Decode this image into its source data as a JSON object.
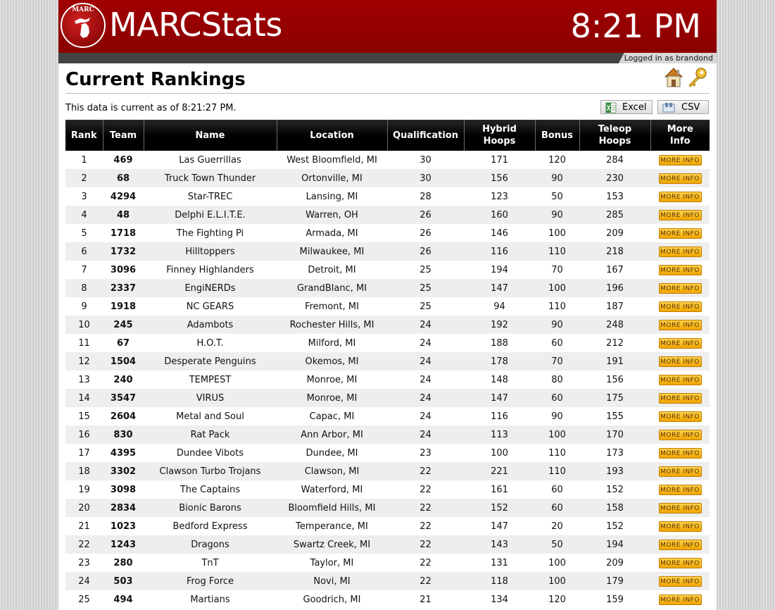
{
  "header": {
    "logo_seal_text": "MARC",
    "app_title": "MARCStats",
    "clock": "8:21 PM",
    "login_status": "Logged in as brandond",
    "brand_color": "#990000"
  },
  "page": {
    "title": "Current Rankings",
    "icons": [
      "home-icon",
      "key-icon"
    ],
    "current_text": "This data is current as of 8:21:27 PM.",
    "export_buttons": {
      "excel": "Excel",
      "csv": "CSV"
    }
  },
  "table": {
    "columns": {
      "rank": "Rank",
      "team": "Team",
      "name": "Name",
      "location": "Location",
      "qualification": "Qualification",
      "hybrid_l1": "Hybrid",
      "hybrid_l2": "Hoops",
      "bonus": "Bonus",
      "teleop_l1": "Teleop",
      "teleop_l2": "Hoops",
      "more_l1": "More",
      "more_l2": "Info"
    },
    "more_info_label": "MORE INFO",
    "rows": [
      {
        "rank": "1",
        "team": "469",
        "name": "Las Guerrillas",
        "location": "West Bloomfield, MI",
        "qualification": "30",
        "hybrid": "171",
        "bonus": "120",
        "teleop": "284"
      },
      {
        "rank": "2",
        "team": "68",
        "name": "Truck Town Thunder",
        "location": "Ortonville, MI",
        "qualification": "30",
        "hybrid": "156",
        "bonus": "90",
        "teleop": "230"
      },
      {
        "rank": "3",
        "team": "4294",
        "name": "Star-TREC",
        "location": "Lansing, MI",
        "qualification": "28",
        "hybrid": "123",
        "bonus": "50",
        "teleop": "153"
      },
      {
        "rank": "4",
        "team": "48",
        "name": "Delphi E.L.I.T.E.",
        "location": "Warren, OH",
        "qualification": "26",
        "hybrid": "160",
        "bonus": "90",
        "teleop": "285"
      },
      {
        "rank": "5",
        "team": "1718",
        "name": "The Fighting Pi",
        "location": "Armada, MI",
        "qualification": "26",
        "hybrid": "146",
        "bonus": "100",
        "teleop": "209"
      },
      {
        "rank": "6",
        "team": "1732",
        "name": "Hilltoppers",
        "location": "Milwaukee, MI",
        "qualification": "26",
        "hybrid": "116",
        "bonus": "110",
        "teleop": "218"
      },
      {
        "rank": "7",
        "team": "3096",
        "name": "Finney Highlanders",
        "location": "Detroit, MI",
        "qualification": "25",
        "hybrid": "194",
        "bonus": "70",
        "teleop": "167"
      },
      {
        "rank": "8",
        "team": "2337",
        "name": "EngiNERDs",
        "location": "GrandBlanc, MI",
        "qualification": "25",
        "hybrid": "147",
        "bonus": "100",
        "teleop": "196"
      },
      {
        "rank": "9",
        "team": "1918",
        "name": "NC GEARS",
        "location": "Fremont, MI",
        "qualification": "25",
        "hybrid": "94",
        "bonus": "110",
        "teleop": "187"
      },
      {
        "rank": "10",
        "team": "245",
        "name": "Adambots",
        "location": "Rochester Hills, MI",
        "qualification": "24",
        "hybrid": "192",
        "bonus": "90",
        "teleop": "248"
      },
      {
        "rank": "11",
        "team": "67",
        "name": "H.O.T.",
        "location": "Milford, MI",
        "qualification": "24",
        "hybrid": "188",
        "bonus": "60",
        "teleop": "212"
      },
      {
        "rank": "12",
        "team": "1504",
        "name": "Desperate Penguins",
        "location": "Okemos, MI",
        "qualification": "24",
        "hybrid": "178",
        "bonus": "70",
        "teleop": "191"
      },
      {
        "rank": "13",
        "team": "240",
        "name": "TEMPEST",
        "location": "Monroe, MI",
        "qualification": "24",
        "hybrid": "148",
        "bonus": "80",
        "teleop": "156"
      },
      {
        "rank": "14",
        "team": "3547",
        "name": "VIRUS",
        "location": "Monroe, MI",
        "qualification": "24",
        "hybrid": "147",
        "bonus": "60",
        "teleop": "175"
      },
      {
        "rank": "15",
        "team": "2604",
        "name": "Metal and Soul",
        "location": "Capac, MI",
        "qualification": "24",
        "hybrid": "116",
        "bonus": "90",
        "teleop": "155"
      },
      {
        "rank": "16",
        "team": "830",
        "name": "Rat Pack",
        "location": "Ann Arbor, MI",
        "qualification": "24",
        "hybrid": "113",
        "bonus": "100",
        "teleop": "170"
      },
      {
        "rank": "17",
        "team": "4395",
        "name": "Dundee Vibots",
        "location": "Dundee, MI",
        "qualification": "23",
        "hybrid": "100",
        "bonus": "110",
        "teleop": "173"
      },
      {
        "rank": "18",
        "team": "3302",
        "name": "Clawson Turbo Trojans",
        "location": "Clawson, MI",
        "qualification": "22",
        "hybrid": "221",
        "bonus": "110",
        "teleop": "193"
      },
      {
        "rank": "19",
        "team": "3098",
        "name": "The Captains",
        "location": "Waterford, MI",
        "qualification": "22",
        "hybrid": "161",
        "bonus": "60",
        "teleop": "152"
      },
      {
        "rank": "20",
        "team": "2834",
        "name": "Bionic Barons",
        "location": "Bloomfield Hills, MI",
        "qualification": "22",
        "hybrid": "152",
        "bonus": "60",
        "teleop": "158"
      },
      {
        "rank": "21",
        "team": "1023",
        "name": "Bedford Express",
        "location": "Temperance, MI",
        "qualification": "22",
        "hybrid": "147",
        "bonus": "20",
        "teleop": "152"
      },
      {
        "rank": "22",
        "team": "1243",
        "name": "Dragons",
        "location": "Swartz Creek, MI",
        "qualification": "22",
        "hybrid": "143",
        "bonus": "50",
        "teleop": "194"
      },
      {
        "rank": "23",
        "team": "280",
        "name": "TnT",
        "location": "Taylor, MI",
        "qualification": "22",
        "hybrid": "131",
        "bonus": "100",
        "teleop": "209"
      },
      {
        "rank": "24",
        "team": "503",
        "name": "Frog Force",
        "location": "Novi, MI",
        "qualification": "22",
        "hybrid": "118",
        "bonus": "100",
        "teleop": "179"
      },
      {
        "rank": "25",
        "team": "494",
        "name": "Martians",
        "location": "Goodrich, MI",
        "qualification": "21",
        "hybrid": "134",
        "bonus": "120",
        "teleop": "159"
      }
    ]
  }
}
